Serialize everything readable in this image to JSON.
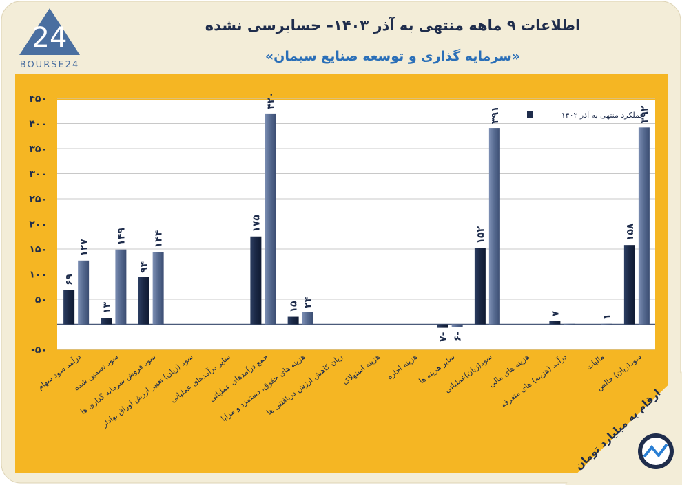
{
  "chart_data": {
    "type": "bar",
    "title": "اطلاعات ۹ ماهه منتهی به آذر ۱۴۰۳– حسابرسی نشده",
    "subtitle": "«سرمایه گذاری و توسعه صنایع سیمان»",
    "note": "ارقام به میلیارد تومان",
    "logo": {
      "mark": "24",
      "name": "BOURSE24"
    },
    "categories": [
      "درآمد سود سهام",
      "سود تضمین شده",
      "سود فروش سرمایه گذاری ها",
      "سود (زیان) تغییر ارزش اوراق بهادار",
      "سایر درآمدهای عملیاتی",
      "جمع درآمدهای عملیاتی",
      "هزینه های حقوق، دستمزد و مزایا",
      "زیان کاهش ارزش دریافتنی ها",
      "هزینه استهلاک",
      "هزینه اجاره",
      "سایر هزینه ها",
      "سود(زیان)عملیاتی",
      "هزینه های مالی",
      "درآمد (هزینه) های متفرقه",
      "مالیات",
      "سود(زیان) خالص"
    ],
    "series": [
      {
        "name": "عملکرد منتهی به آذر ۱۴۰۲",
        "color": "#1f2d4c",
        "values": [
          69,
          13,
          94,
          0,
          0,
          175,
          15,
          0,
          0,
          0,
          -7,
          152,
          0,
          7,
          0,
          158
        ],
        "value_labels": [
          "۶۹",
          "۱۳",
          "۹۴",
          null,
          null,
          "۱۷۵",
          "۱۵",
          null,
          null,
          null,
          "۷-",
          "۱۵۲",
          null,
          "۷",
          null,
          "۱۵۸"
        ]
      },
      {
        "name": null,
        "color": "#5a6e96",
        "values": [
          127,
          149,
          144,
          0,
          0,
          420,
          24,
          0,
          0,
          0,
          -6,
          391,
          0,
          1,
          1,
          392
        ],
        "value_labels": [
          "۱۲۷",
          "۱۴۹",
          "۱۴۴",
          null,
          null,
          "۴۲۰",
          "۲۴",
          null,
          null,
          null,
          "۶-",
          "۳۹۱",
          null,
          null,
          "۱",
          "۳۹۲"
        ]
      }
    ],
    "ylim": [
      -50,
      450
    ],
    "yticks": [
      {
        "value": -50,
        "label": "-۵۰"
      },
      {
        "value": 50,
        "label": "۵۰"
      },
      {
        "value": 100,
        "label": "۱۰۰"
      },
      {
        "value": 150,
        "label": "۱۵۰"
      },
      {
        "value": 200,
        "label": "۲۰۰"
      },
      {
        "value": 250,
        "label": "۲۵۰"
      },
      {
        "value": 300,
        "label": "۳۰۰"
      },
      {
        "value": 350,
        "label": "۳۵۰"
      },
      {
        "value": 400,
        "label": "۴۰۰"
      },
      {
        "value": 450,
        "label": "۴۵۰"
      }
    ],
    "grid": true,
    "legend": "top-right"
  }
}
